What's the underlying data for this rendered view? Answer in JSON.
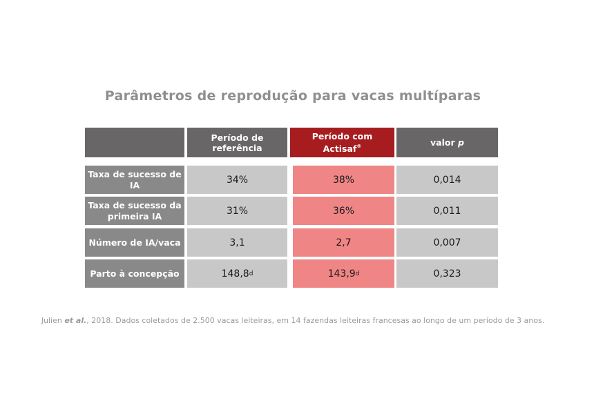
{
  "chart_data": {
    "type": "table",
    "title": "Parâmetros de reprodução para vacas multíparas",
    "columns": [
      {
        "label": "",
        "sup": ""
      },
      {
        "label": "Período de referência",
        "sup": ""
      },
      {
        "label": "Período com Actisaf",
        "sup": "®"
      },
      {
        "label": "valor p",
        "sup": ""
      }
    ],
    "rows": [
      {
        "label": "Taxa de sucesso de IA",
        "reference": "34%",
        "reference_sup": "",
        "actisaf": "38%",
        "actisaf_sup": "",
        "p_value": "0,014"
      },
      {
        "label": "Taxa de sucesso da primeira IA",
        "reference": "31%",
        "reference_sup": "",
        "actisaf": "36%",
        "actisaf_sup": "",
        "p_value": "0,011"
      },
      {
        "label": "Número de IA/vaca",
        "reference": "3,1",
        "reference_sup": "",
        "actisaf": "2,7",
        "actisaf_sup": "",
        "p_value": "0,007"
      },
      {
        "label": "Parto à concepção",
        "reference": "148,8",
        "reference_sup": "d",
        "actisaf": "143,9",
        "actisaf_sup": "d",
        "p_value": "0,323"
      }
    ],
    "footnote": {
      "author": "Julien",
      "et_al": "et al.",
      "rest": ", 2018. Dados coletados de 2.500 vacas leiteiras, em 14 fazendas leiteiras francesas ao longo de um período de 3 anos."
    }
  },
  "colors": {
    "header_dark": "#686666",
    "header_red": "#a61c1f",
    "row_label": "#898989",
    "cell_gray": "#c8c8c8",
    "cell_pink": "#f08585",
    "title": "#8f8f8f"
  }
}
